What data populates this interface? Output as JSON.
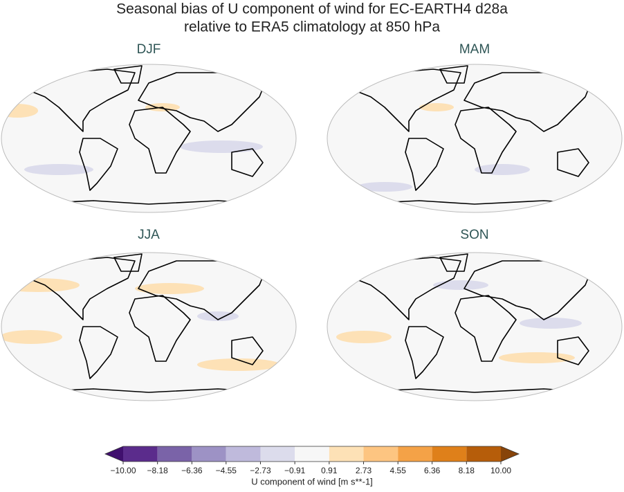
{
  "title": [
    "Seasonal bias of U component of wind for EC-EARTH4 d28a",
    "relative to ERA5 climatology at 850 hPa"
  ],
  "panels": [
    "DJF",
    "MAM",
    "JJA",
    "SON"
  ],
  "colorbar": {
    "label": "U component of wind [m s**-1]",
    "ticks": [
      {
        "value": -10,
        "label": "−10.00"
      },
      {
        "value": -8.18,
        "label": "−8.18"
      },
      {
        "value": -6.36,
        "label": "−6.36"
      },
      {
        "value": -4.55,
        "label": "−4.55"
      },
      {
        "value": -2.73,
        "label": "−2.73"
      },
      {
        "value": -0.91,
        "label": "−0.91"
      },
      {
        "value": 0.91,
        "label": "0.91"
      },
      {
        "value": 2.73,
        "label": "2.73"
      },
      {
        "value": 4.55,
        "label": "4.55"
      },
      {
        "value": 6.36,
        "label": "6.36"
      },
      {
        "value": 8.18,
        "label": "8.18"
      },
      {
        "value": 10,
        "label": "10.00"
      }
    ],
    "colors": [
      "#5b2c8c",
      "#7a63a8",
      "#9d92c5",
      "#bfbadc",
      "#dcdcec",
      "#f7f7f7",
      "#fde1b6",
      "#fdc581",
      "#f4a247",
      "#df801a",
      "#b65d0a"
    ],
    "under_color": "#40106e",
    "over_color": "#87440a"
  }
}
